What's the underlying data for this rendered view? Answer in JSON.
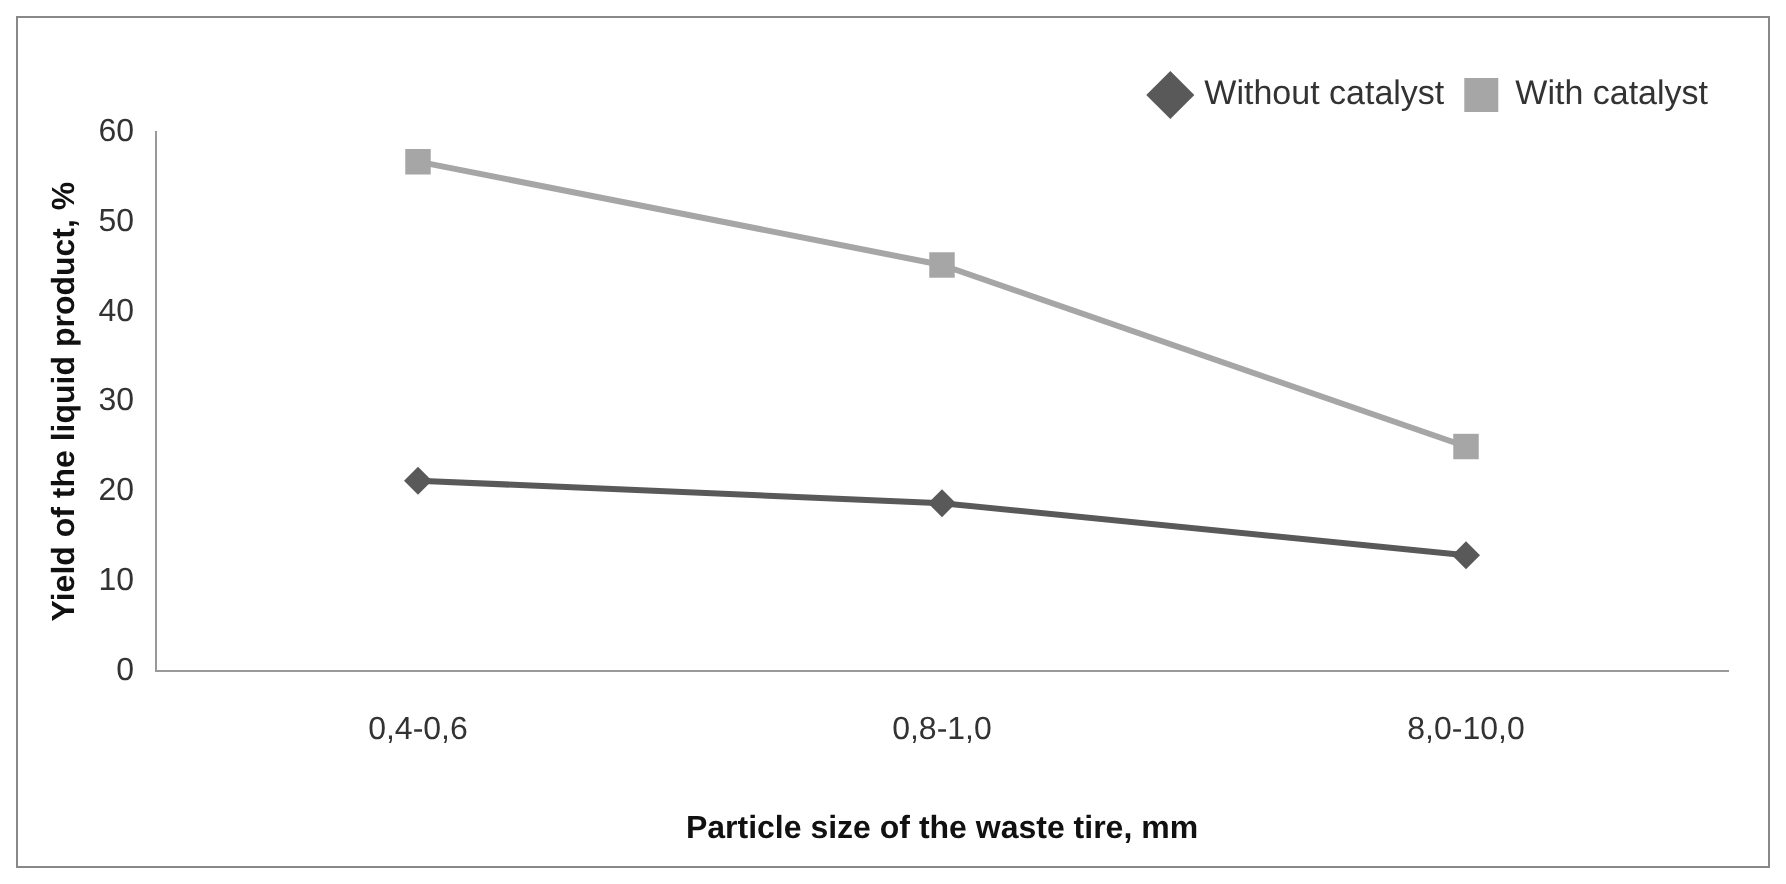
{
  "chart_data": {
    "type": "line",
    "xlabel": "Particle size of the waste tire, mm",
    "ylabel": "Yield of the liquid product, %",
    "categories": [
      "0,4-0,6",
      "0,8-1,0",
      "8,0-10,0"
    ],
    "series": [
      {
        "name": "Without catalyst",
        "color": "#595959",
        "values": [
          21.2,
          18.7,
          12.9
        ],
        "marker": "diamond"
      },
      {
        "name": "With catalyst",
        "color": "#a6a6a6",
        "values": [
          56.7,
          45.2,
          25.0
        ],
        "marker": "square"
      }
    ],
    "ylim": [
      0,
      60
    ],
    "yticks": [
      0,
      10,
      20,
      30,
      40,
      50,
      60
    ],
    "legend": "top right",
    "line_style": "solid"
  }
}
